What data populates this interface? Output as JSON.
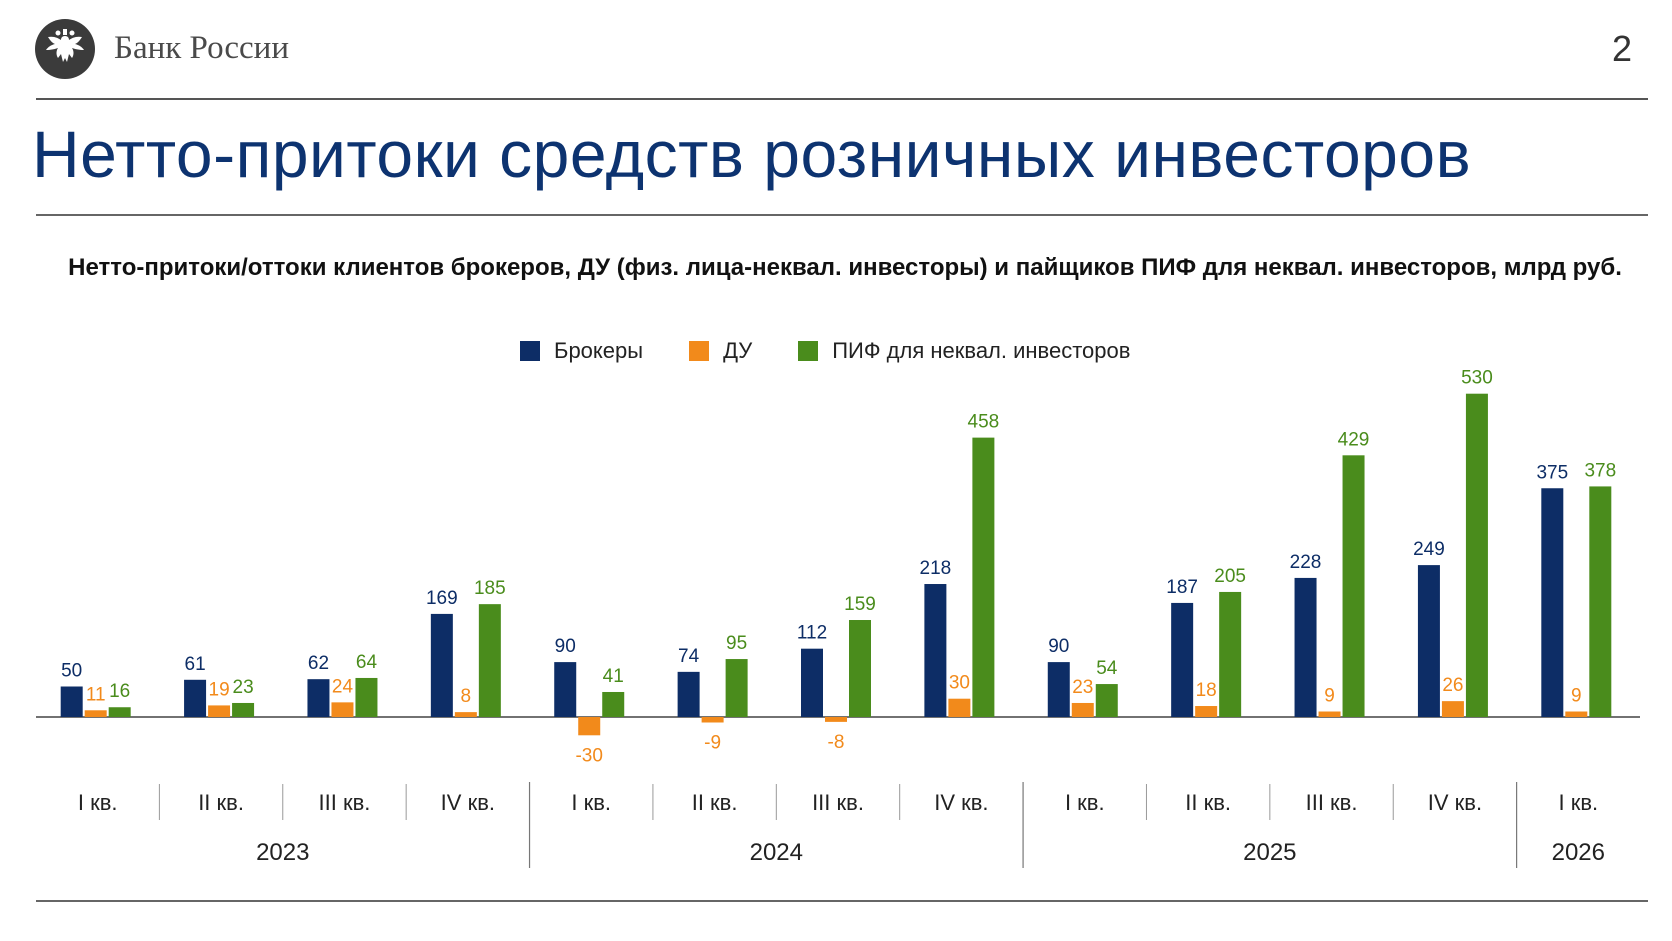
{
  "header": {
    "org_name": "Банк России",
    "page_number": "2",
    "logo_icon": "double-headed-eagle-emblem-icon"
  },
  "page_title": "Нетто-притоки средств розничных инвесторов",
  "colors": {
    "brokers": "#0d2d66",
    "du": "#f28a1b",
    "pif": "#4a8c1c",
    "title": "#0d3370"
  },
  "chart_data": {
    "type": "bar",
    "title": "Нетто-притоки/оттоки клиентов брокеров, ДУ (физ. лица-неквал. инвесторы) и пайщиков ПИФ для неквал. инвесторов, млрд руб.",
    "legend_position": "top",
    "grid": false,
    "categories": [
      "I кв.",
      "II кв.",
      "III кв.",
      "IV кв.",
      "I кв.",
      "II кв.",
      "III кв.",
      "IV кв.",
      "I кв.",
      "II кв.",
      "III кв.",
      "IV кв.",
      "I кв."
    ],
    "years": [
      {
        "label": "2023",
        "quarters": 4
      },
      {
        "label": "2024",
        "quarters": 4
      },
      {
        "label": "2025",
        "quarters": 4
      },
      {
        "label": "2026",
        "quarters": 1
      }
    ],
    "series": [
      {
        "name": "Брокеры",
        "values": [
          50,
          61,
          62,
          169,
          90,
          74,
          112,
          218,
          90,
          187,
          228,
          249,
          375
        ]
      },
      {
        "name": "ДУ",
        "values": [
          11,
          19,
          24,
          8,
          -30,
          -9,
          -8,
          30,
          23,
          18,
          9,
          26,
          9
        ]
      },
      {
        "name": "ПИФ для неквал. инвесторов",
        "values": [
          16,
          23,
          64,
          185,
          41,
          95,
          159,
          458,
          54,
          205,
          429,
          530,
          378
        ]
      }
    ]
  }
}
